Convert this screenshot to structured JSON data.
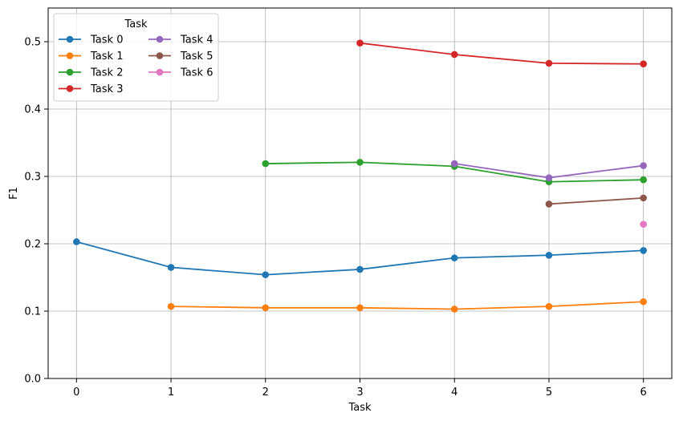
{
  "chart_data": {
    "type": "line",
    "title": "",
    "xlabel": "Task",
    "ylabel": "F1",
    "xlim": [
      -0.3,
      6.3
    ],
    "ylim": [
      0.0,
      0.55
    ],
    "xticks": [
      0,
      1,
      2,
      3,
      4,
      5,
      6
    ],
    "xtick_labels": [
      "0",
      "1",
      "2",
      "3",
      "4",
      "5",
      "6"
    ],
    "yticks": [
      0.0,
      0.1,
      0.2,
      0.3,
      0.4,
      0.5
    ],
    "ytick_labels": [
      "0.0",
      "0.1",
      "0.2",
      "0.3",
      "0.4",
      "0.5"
    ],
    "grid": true,
    "legend": {
      "title": "Task",
      "placement": "top-left",
      "columns": 2
    },
    "series": [
      {
        "name": "Task 0",
        "color": "#1f77b4",
        "x": [
          0,
          1,
          2,
          3,
          4,
          5,
          6
        ],
        "y": [
          0.203,
          0.165,
          0.154,
          0.162,
          0.179,
          0.183,
          0.19
        ]
      },
      {
        "name": "Task 1",
        "color": "#ff7f0e",
        "x": [
          1,
          2,
          3,
          4,
          5,
          6
        ],
        "y": [
          0.107,
          0.105,
          0.105,
          0.103,
          0.107,
          0.114
        ]
      },
      {
        "name": "Task 2",
        "color": "#2ca02c",
        "x": [
          2,
          3,
          4,
          5,
          6
        ],
        "y": [
          0.319,
          0.321,
          0.315,
          0.292,
          0.295
        ]
      },
      {
        "name": "Task 3",
        "color": "#d62728",
        "x": [
          3,
          4,
          5,
          6
        ],
        "y": [
          0.498,
          0.481,
          0.468,
          0.467
        ]
      },
      {
        "name": "Task 4",
        "color": "#9467bd",
        "x": [
          4,
          5,
          6
        ],
        "y": [
          0.319,
          0.298,
          0.316
        ]
      },
      {
        "name": "Task 5",
        "color": "#8c564b",
        "x": [
          5,
          6
        ],
        "y": [
          0.259,
          0.268
        ]
      },
      {
        "name": "Task 6",
        "color": "#e377c2",
        "x": [
          6
        ],
        "y": [
          0.229
        ]
      }
    ]
  }
}
